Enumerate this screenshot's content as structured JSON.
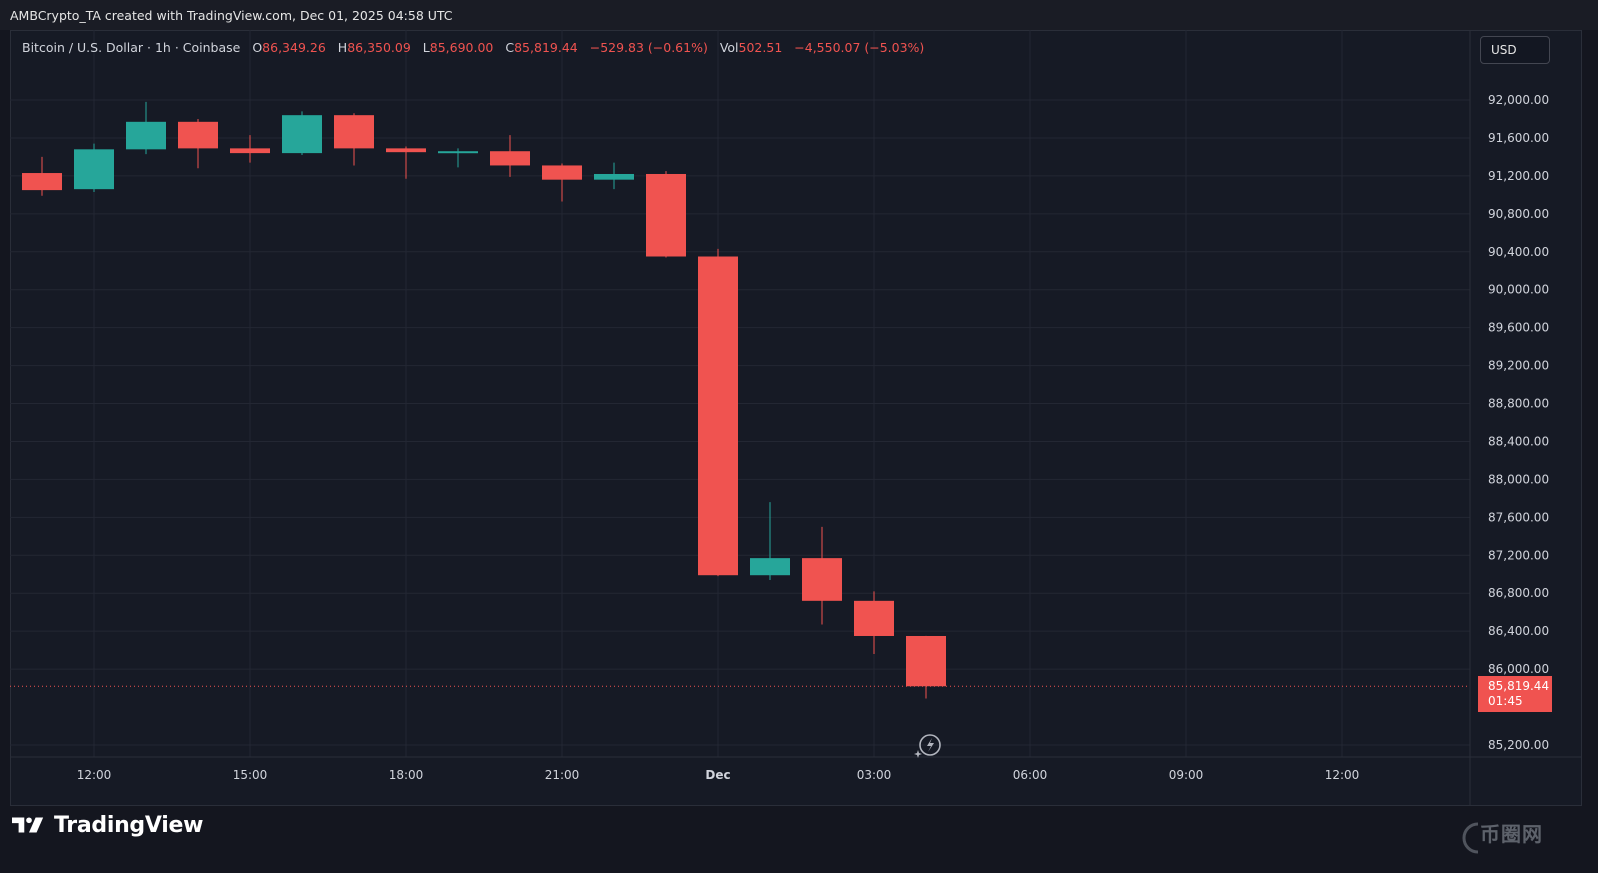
{
  "header": {
    "attribution": "AMBCrypto_TA created with TradingView.com, Dec 01, 2025 04:58 UTC"
  },
  "legend": {
    "symbol": "Bitcoin / U.S. Dollar · 1h · Coinbase",
    "o_label": "O",
    "o_value": "86,349.26",
    "h_label": "H",
    "h_value": "86,350.09",
    "l_label": "L",
    "l_value": "85,690.00",
    "c_label": "C",
    "c_value": "85,819.44",
    "change": "−529.83 (−0.61%)",
    "vol_label": "Vol",
    "vol_value": "502.51",
    "vol_change": "−4,550.07 (−5.03%)"
  },
  "currency_button": "USD",
  "last_price": {
    "price": "85,819.44",
    "countdown": "01:45"
  },
  "brand": "TradingView",
  "watermark": "币圈网",
  "colors": {
    "up": "#26a69a",
    "down": "#f05350",
    "background": "#161a25",
    "grid": "#232733"
  },
  "icons": {
    "reset": "lightning-reset-icon",
    "logo": "tradingview-logo-icon"
  },
  "chart_data": {
    "type": "candlestick",
    "ylim": [
      85000,
      92400
    ],
    "y_ticks": [
      85200,
      86000,
      86400,
      86800,
      87200,
      87600,
      88000,
      88400,
      88800,
      89200,
      89600,
      90000,
      90400,
      90800,
      91200,
      91600,
      92000
    ],
    "y_tick_labels": [
      "85,200.00",
      "86,000.00",
      "86,400.00",
      "86,800.00",
      "87,200.00",
      "87,600.00",
      "88,000.00",
      "88,400.00",
      "88,800.00",
      "89,200.00",
      "89,600.00",
      "90,000.00",
      "90,400.00",
      "90,800.00",
      "91,200.00",
      "91,600.00",
      "92,000.00"
    ],
    "x_ticks": [
      "12:00",
      "15:00",
      "18:00",
      "21:00",
      "Dec",
      "03:00",
      "06:00",
      "09:00",
      "12:00"
    ],
    "x_tick_hours": [
      12,
      15,
      18,
      21,
      24,
      27,
      30,
      33,
      36
    ],
    "candles": [
      {
        "t": 11,
        "o": 91230,
        "h": 91400,
        "l": 90990,
        "c": 91050
      },
      {
        "t": 12,
        "o": 91060,
        "h": 91540,
        "l": 91030,
        "c": 91480
      },
      {
        "t": 13,
        "o": 91480,
        "h": 91980,
        "l": 91430,
        "c": 91770
      },
      {
        "t": 14,
        "o": 91770,
        "h": 91800,
        "l": 91280,
        "c": 91490
      },
      {
        "t": 15,
        "o": 91490,
        "h": 91630,
        "l": 91340,
        "c": 91440
      },
      {
        "t": 16,
        "o": 91440,
        "h": 91880,
        "l": 91420,
        "c": 91840
      },
      {
        "t": 17,
        "o": 91840,
        "h": 91860,
        "l": 91310,
        "c": 91490
      },
      {
        "t": 18,
        "o": 91490,
        "h": 91510,
        "l": 91170,
        "c": 91450
      },
      {
        "t": 19,
        "o": 91450,
        "h": 91490,
        "l": 91290,
        "c": 91460
      },
      {
        "t": 20,
        "o": 91460,
        "h": 91630,
        "l": 91190,
        "c": 91310
      },
      {
        "t": 21,
        "o": 91310,
        "h": 91330,
        "l": 90930,
        "c": 91160
      },
      {
        "t": 22,
        "o": 91160,
        "h": 91340,
        "l": 91060,
        "c": 91220
      },
      {
        "t": 23,
        "o": 91220,
        "h": 91250,
        "l": 90340,
        "c": 90350
      },
      {
        "t": 24,
        "o": 90350,
        "h": 90430,
        "l": 86980,
        "c": 86990
      },
      {
        "t": 25,
        "o": 86990,
        "h": 87760,
        "l": 86940,
        "c": 87170
      },
      {
        "t": 26,
        "o": 87170,
        "h": 87500,
        "l": 86470,
        "c": 86720
      },
      {
        "t": 27,
        "o": 86720,
        "h": 86820,
        "l": 86160,
        "c": 86349.26
      },
      {
        "t": 28,
        "o": 86349.26,
        "h": 86350.09,
        "l": 85690,
        "c": 85819.44
      }
    ]
  }
}
